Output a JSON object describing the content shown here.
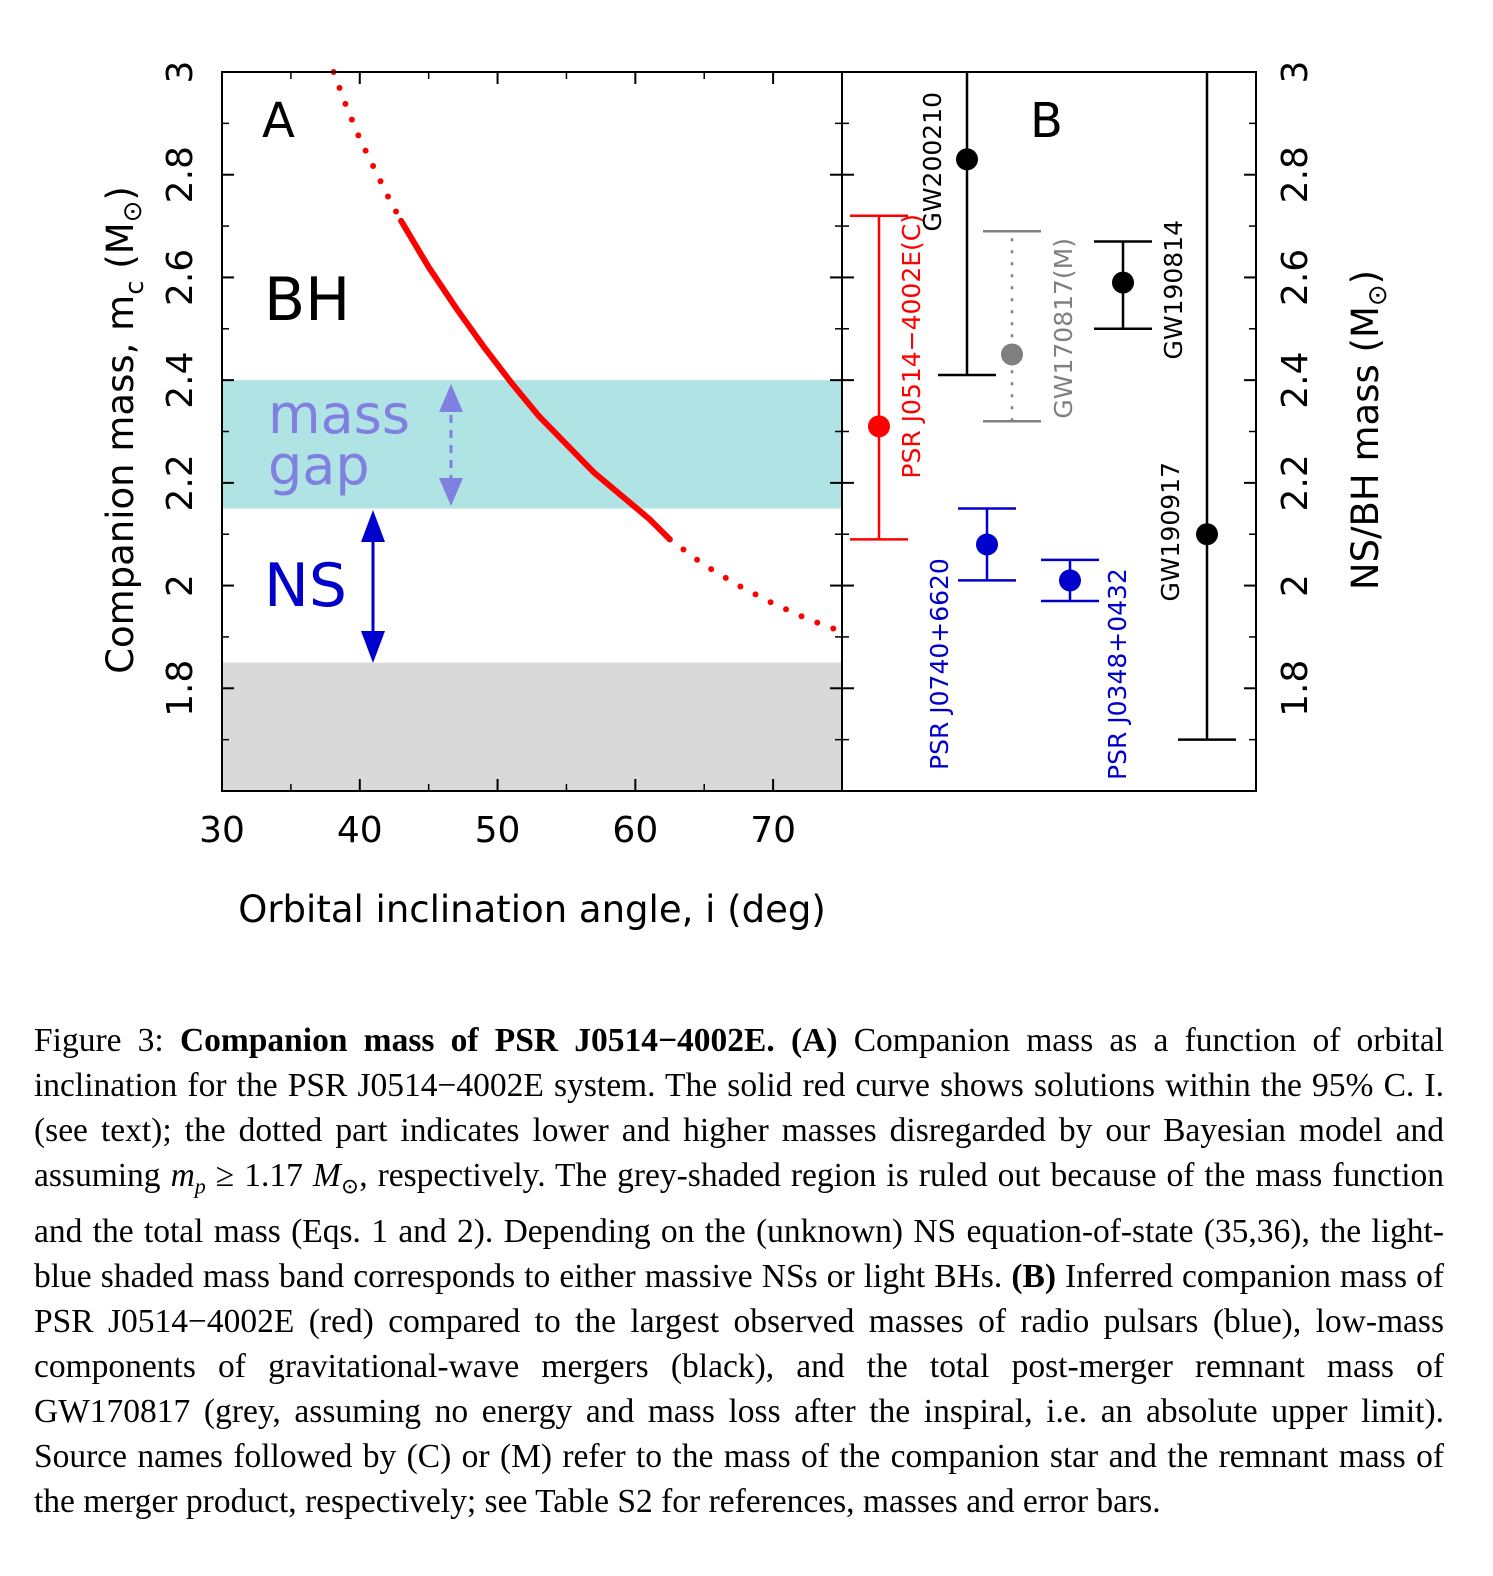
{
  "chart_data": [
    {
      "panel_label": "A",
      "type": "line",
      "xlabel": "Orbital inclination angle, i (deg)",
      "ylabel": "Companion mass, m_c (M_⊙)",
      "ylabel_parts": {
        "main": "Companion mass, m",
        "sub": "c",
        "units": "(M",
        "units_close": ")",
        "sun_symbol": "⊙"
      },
      "xlim": [
        30,
        75
      ],
      "ylim": [
        1.6,
        3.0
      ],
      "xticks": [
        "30",
        "40",
        "50",
        "60",
        "70"
      ],
      "yticks": [
        "1.8",
        "2",
        "2.2",
        "2.4",
        "2.6",
        "2.8",
        "3"
      ],
      "regions": [
        {
          "label": "BH",
          "color": "#000000"
        },
        {
          "label_lines": [
            "mass",
            "gap"
          ],
          "y_range": [
            2.15,
            2.4
          ],
          "fill": "#b0e4e4",
          "color": "#8080e0"
        },
        {
          "label": "NS",
          "color": "#0000cc"
        },
        {
          "name": "ruled out",
          "y_range": [
            1.6,
            1.85
          ],
          "fill": "#d9d9d9"
        }
      ],
      "series": [
        {
          "style": "dotted",
          "color": "#ff0000",
          "x": [
            38.1,
            39,
            40,
            41,
            42,
            43
          ],
          "y": [
            3.0,
            2.935,
            2.87,
            2.815,
            2.76,
            2.71
          ]
        },
        {
          "style": "solid",
          "color": "#ff0000",
          "x": [
            43,
            45,
            47,
            49,
            51,
            53,
            55,
            57,
            59,
            61,
            62.5
          ],
          "y": [
            2.71,
            2.62,
            2.54,
            2.465,
            2.395,
            2.33,
            2.275,
            2.22,
            2.175,
            2.13,
            2.09
          ]
        },
        {
          "style": "dotted",
          "color": "#ff0000",
          "x": [
            62.5,
            65,
            67.5,
            70,
            72.5,
            75
          ],
          "y": [
            2.09,
            2.04,
            2.0,
            1.965,
            1.935,
            1.91
          ]
        }
      ]
    },
    {
      "panel_label": "B",
      "type": "scatter",
      "ylabel": "NS/BH mass (M_⊙)",
      "ylabel_parts": {
        "main": "NS/BH mass (M",
        "close": ")",
        "sun_symbol": "⊙"
      },
      "ylim": [
        1.6,
        3.0
      ],
      "yticks": [
        "1.8",
        "2",
        "2.2",
        "2.4",
        "2.6",
        "2.8",
        "3"
      ],
      "points": [
        {
          "name": "PSR J0514−4002E(C)",
          "value": 2.31,
          "low": 2.09,
          "high": 2.72,
          "color": "#ff0000",
          "line": "solid"
        },
        {
          "name": "PSR J0740+6620",
          "value": 2.08,
          "low": 2.01,
          "high": 2.15,
          "color": "#0000cc",
          "line": "solid"
        },
        {
          "name": "GW200210",
          "value": 2.83,
          "low": 2.41,
          "high": 3.0,
          "color": "#000000",
          "line": "solid"
        },
        {
          "name": "GW170817(M)",
          "value": 2.45,
          "low": 2.32,
          "high": 2.69,
          "color": "#808080",
          "line": "dotted"
        },
        {
          "name": "PSR J0348+0432",
          "value": 2.01,
          "low": 1.97,
          "high": 2.05,
          "color": "#0000cc",
          "line": "solid"
        },
        {
          "name": "GW190814",
          "value": 2.59,
          "low": 2.5,
          "high": 2.67,
          "color": "#000000",
          "line": "solid"
        },
        {
          "name": "GW190917",
          "value": 2.1,
          "low": 1.7,
          "high": 3.0,
          "color": "#000000",
          "line": "solid"
        }
      ]
    }
  ],
  "caption": {
    "figure_label": "Figure 3:",
    "bold_title": "Companion mass of PSR J0514−4002E.",
    "panel_a": "(A)",
    "text_a1": "Companion mass as a function of orbital inclination for the PSR J0514−4002E system.  The solid red curve shows solutions within the 95% C. I. (see text); the dotted part indicates lower and higher masses disregarded by our Bayesian model and assuming",
    "math_mp": "m",
    "math_mp_sub": "p",
    "math_ge": "≥ 1.17",
    "math_M": "M",
    "math_sun": "⊙",
    "text_a2": ", respectively.  The grey-shaded region is ruled out because of the mass function and the total mass (Eqs. 1 and 2). Depending on the (unknown) NS equation-of-state (35,36), the light-blue shaded mass band corresponds to either massive NSs or light BHs.",
    "panel_b": "(B)",
    "text_b": "Inferred companion mass of PSR J0514−4002E (red) compared to the largest observed masses of radio pulsars (blue), low-mass components of gravitational-wave mergers (black), and the total post-merger remnant mass of GW170817 (grey, assuming no energy and mass loss after the inspiral, i.e. an absolute upper limit). Source names followed by (C) or (M) refer to the mass of the companion star and the remnant mass of the merger product, respectively; see Table S2 for references, masses and error bars."
  }
}
